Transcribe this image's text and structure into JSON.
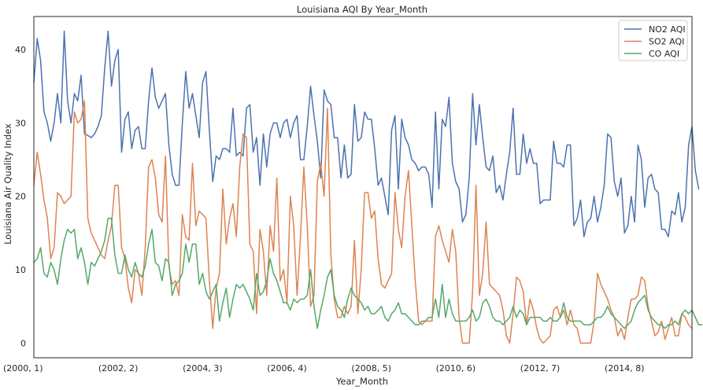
{
  "chart_data": {
    "type": "line",
    "title": "Louisiana AQI By Year_Month",
    "xlabel": "Year_Month",
    "ylabel": "Louisiana Air Quality Index",
    "x_tick_labels": [
      "(2000, 1)",
      "(2002, 2)",
      "(2004, 3)",
      "(2006, 4)",
      "(2008, 5)",
      "(2010, 6)",
      "(2012, 7)",
      "(2014, 8)"
    ],
    "x_tick_index": [
      0,
      25,
      50,
      75,
      100,
      125,
      150,
      175
    ],
    "xlim": [
      0,
      195
    ],
    "y_ticks": [
      0,
      10,
      20,
      30,
      40
    ],
    "ylim": [
      -2,
      44.5
    ],
    "grid": false,
    "legend": "top-right",
    "series": [
      {
        "name": "NO2 AQI",
        "color": "#4c72b0",
        "values": [
          35.5,
          41.5,
          38.5,
          31.5,
          30.0,
          27.5,
          30.0,
          34.0,
          30.0,
          42.5,
          33.0,
          30.0,
          34.0,
          33.0,
          36.5,
          28.5,
          28.3,
          28.0,
          28.5,
          29.5,
          31.0,
          37.5,
          42.5,
          35.0,
          38.5,
          40.0,
          26.0,
          30.5,
          31.5,
          26.5,
          29.0,
          29.5,
          26.5,
          26.5,
          33.0,
          37.5,
          33.5,
          32.0,
          33.0,
          34.0,
          27.0,
          23.0,
          21.5,
          21.5,
          30.0,
          37.0,
          32.0,
          34.0,
          31.0,
          28.0,
          35.5,
          37.0,
          29.0,
          22.0,
          25.5,
          25.0,
          26.5,
          26.5,
          26.0,
          32.0,
          25.5,
          26.0,
          25.5,
          32.0,
          32.5,
          26.0,
          28.0,
          21.5,
          28.5,
          24.0,
          28.5,
          30.0,
          30.0,
          28.0,
          30.0,
          30.5,
          28.0,
          30.0,
          31.0,
          25.0,
          25.0,
          29.5,
          35.0,
          31.0,
          27.5,
          22.5,
          34.5,
          33.0,
          32.5,
          28.0,
          28.0,
          22.5,
          27.0,
          22.5,
          23.0,
          32.5,
          27.5,
          28.0,
          31.5,
          30.5,
          30.5,
          26.5,
          21.5,
          22.5,
          20.0,
          17.5,
          29.0,
          31.0,
          21.0,
          30.5,
          28.0,
          27.0,
          25.0,
          24.5,
          23.5,
          24.0,
          24.0,
          23.0,
          18.5,
          31.5,
          21.0,
          30.5,
          29.5,
          33.5,
          24.5,
          22.0,
          21.0,
          16.5,
          17.5,
          22.5,
          34.0,
          27.0,
          32.5,
          28.0,
          24.0,
          23.5,
          25.5,
          20.5,
          21.5,
          19.5,
          23.0,
          26.0,
          32.0,
          23.0,
          23.0,
          28.5,
          24.5,
          26.5,
          24.5,
          24.5,
          19.0,
          19.5,
          19.5,
          19.5,
          27.5,
          24.5,
          24.5,
          24.0,
          27.0,
          27.0,
          16.0,
          17.0,
          19.5,
          14.5,
          16.5,
          17.0,
          20.0,
          16.5,
          18.5,
          21.5,
          28.5,
          28.0,
          22.0,
          20.0,
          22.5,
          15.0,
          16.0,
          20.0,
          16.5,
          27.0,
          25.0,
          18.5,
          22.5,
          23.0,
          21.0,
          20.5,
          15.5,
          15.5,
          14.5,
          18.0,
          17.5,
          20.5,
          16.5,
          18.5,
          27.0,
          29.5,
          23.5,
          21.0
        ]
      },
      {
        "name": "SO2 AQI",
        "color": "#dd8452",
        "values": [
          21.5,
          26.0,
          23.0,
          19.5,
          17.0,
          11.5,
          13.0,
          20.5,
          20.0,
          19.0,
          19.5,
          20.0,
          31.5,
          30.0,
          30.5,
          33.0,
          17.0,
          15.0,
          14.0,
          13.0,
          12.0,
          11.5,
          14.0,
          16.0,
          21.5,
          21.5,
          13.0,
          11.5,
          7.5,
          5.5,
          10.0,
          9.5,
          6.5,
          13.0,
          24.0,
          25.0,
          22.5,
          17.5,
          16.5,
          25.5,
          10.5,
          8.0,
          8.5,
          6.5,
          17.5,
          14.5,
          14.0,
          24.5,
          16.0,
          18.0,
          17.5,
          17.0,
          8.5,
          2.0,
          7.5,
          9.5,
          21.0,
          13.5,
          17.0,
          19.0,
          14.5,
          24.0,
          28.5,
          28.0,
          13.5,
          12.5,
          4.0,
          15.5,
          12.5,
          6.5,
          16.0,
          12.5,
          22.5,
          8.5,
          10.0,
          5.5,
          20.0,
          16.0,
          6.5,
          14.5,
          24.0,
          16.0,
          5.0,
          6.5,
          22.0,
          24.5,
          20.0,
          32.0,
          12.0,
          6.0,
          3.5,
          3.5,
          5.0,
          4.0,
          5.0,
          14.0,
          4.0,
          10.0,
          20.5,
          20.5,
          17.0,
          18.0,
          11.5,
          8.0,
          7.5,
          8.5,
          9.5,
          20.5,
          15.5,
          13.0,
          20.0,
          23.5,
          16.0,
          8.5,
          3.0,
          2.5,
          3.0,
          3.0,
          3.0,
          14.5,
          16.0,
          14.0,
          12.5,
          11.0,
          15.5,
          12.5,
          3.5,
          0.0,
          0.0,
          0.0,
          7.0,
          21.5,
          6.5,
          9.5,
          16.5,
          8.0,
          7.5,
          7.0,
          6.5,
          4.5,
          1.0,
          0.0,
          4.0,
          9.0,
          8.5,
          7.0,
          2.5,
          6.0,
          4.5,
          2.0,
          0.5,
          0.0,
          0.5,
          1.0,
          4.5,
          5.0,
          3.5,
          4.5,
          2.5,
          4.5,
          2.5,
          2.0,
          0.0,
          0.0,
          0.0,
          0.0,
          3.0,
          9.5,
          8.0,
          7.0,
          6.0,
          4.5,
          3.5,
          1.0,
          2.0,
          0.5,
          3.5,
          6.0,
          6.0,
          6.5,
          9.0,
          8.5,
          5.0,
          3.0,
          1.0,
          1.5,
          3.0,
          0.5,
          2.0,
          3.5,
          1.0,
          1.0,
          4.0,
          3.5,
          2.5,
          2.0
        ]
      },
      {
        "name": "CO AQI",
        "color": "#55a868",
        "values": [
          11.0,
          11.5,
          13.0,
          9.5,
          9.0,
          11.0,
          10.0,
          8.0,
          11.5,
          14.0,
          15.5,
          15.0,
          15.5,
          11.5,
          13.0,
          11.0,
          8.0,
          11.0,
          10.5,
          11.5,
          12.5,
          14.0,
          17.0,
          17.0,
          12.0,
          9.5,
          9.5,
          12.0,
          10.0,
          9.0,
          11.0,
          9.5,
          9.0,
          10.5,
          13.5,
          15.5,
          11.0,
          10.5,
          8.5,
          11.5,
          11.0,
          6.5,
          8.0,
          8.5,
          9.5,
          13.5,
          11.0,
          13.5,
          13.5,
          8.0,
          9.5,
          7.0,
          6.0,
          7.0,
          8.0,
          3.0,
          5.5,
          7.5,
          3.5,
          6.0,
          8.0,
          7.5,
          8.0,
          7.0,
          6.0,
          4.5,
          9.5,
          6.5,
          7.0,
          8.5,
          11.5,
          9.5,
          8.5,
          7.0,
          5.5,
          5.5,
          4.5,
          6.0,
          5.5,
          6.0,
          6.0,
          6.5,
          10.0,
          5.0,
          2.0,
          4.5,
          6.5,
          9.0,
          10.0,
          6.5,
          5.0,
          4.5,
          3.5,
          6.0,
          7.5,
          6.5,
          6.0,
          5.5,
          4.5,
          5.0,
          4.0,
          4.0,
          4.5,
          5.0,
          3.5,
          3.0,
          4.0,
          4.5,
          5.5,
          4.0,
          4.0,
          3.5,
          3.0,
          2.5,
          2.5,
          3.0,
          3.0,
          3.5,
          3.5,
          6.0,
          3.5,
          8.0,
          3.5,
          6.0,
          4.0,
          3.0,
          3.0,
          3.0,
          3.0,
          3.5,
          4.5,
          3.0,
          3.5,
          5.5,
          6.0,
          5.0,
          3.5,
          3.0,
          3.0,
          2.5,
          3.0,
          3.5,
          5.0,
          3.5,
          4.5,
          4.0,
          2.5,
          3.5,
          3.5,
          3.5,
          3.5,
          3.0,
          3.0,
          3.5,
          3.0,
          3.0,
          3.5,
          5.5,
          3.5,
          3.0,
          3.0,
          3.0,
          3.0,
          2.5,
          2.5,
          2.5,
          3.0,
          3.5,
          3.5,
          4.0,
          5.0,
          4.0,
          3.5,
          3.0,
          2.5,
          2.0,
          2.5,
          3.0,
          4.5,
          5.5,
          6.0,
          6.5,
          4.5,
          3.5,
          3.0,
          2.5,
          2.5,
          2.0,
          2.5,
          2.5,
          3.0,
          2.5,
          4.0,
          4.5,
          4.0,
          4.5,
          3.5,
          2.5,
          2.5
        ]
      }
    ]
  }
}
